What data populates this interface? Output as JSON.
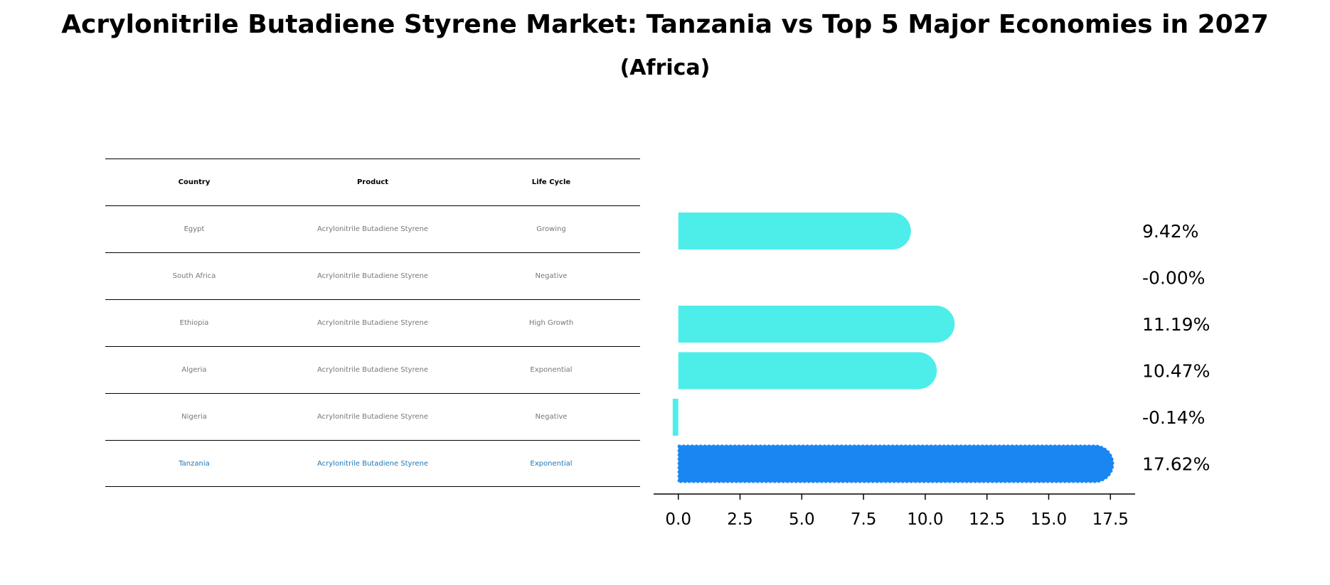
{
  "title": "Acrylonitrile Butadiene Styrene Market: Tanzania vs Top 5 Major Economies in 2027",
  "subtitle": "(Africa)",
  "table": {
    "headers": [
      "Country",
      "Product",
      "Life Cycle"
    ],
    "rows": [
      [
        "Egypt",
        "Acrylonitrile Butadiene Styrene",
        "Growing"
      ],
      [
        "South Africa",
        "Acrylonitrile Butadiene Styrene",
        "Negative"
      ],
      [
        "Ethiopia",
        "Acrylonitrile Butadiene Styrene",
        "High Growth"
      ],
      [
        "Algeria",
        "Acrylonitrile Butadiene Styrene",
        "Exponential"
      ],
      [
        "Nigeria",
        "Acrylonitrile Butadiene Styrene",
        "Negative"
      ],
      [
        "Tanzania",
        "Acrylonitrile Butadiene Styrene",
        "Exponential"
      ]
    ]
  },
  "chart_data": {
    "type": "bar",
    "orientation": "horizontal",
    "categories": [
      "Egypt",
      "South Africa",
      "Ethiopia",
      "Algeria",
      "Nigeria",
      "Tanzania"
    ],
    "values": [
      9.42,
      -0.0,
      11.19,
      10.47,
      -0.14,
      17.62
    ],
    "value_labels": [
      "9.42%",
      "-0.00%",
      "11.19%",
      "10.47%",
      "-0.14%",
      "17.62%"
    ],
    "highlight": "Tanzania",
    "xlim": [
      -1.0,
      18.5
    ],
    "xticks": [
      0.0,
      2.5,
      5.0,
      7.5,
      10.0,
      12.5,
      15.0,
      17.5
    ],
    "xtick_labels": [
      "0.0",
      "2.5",
      "5.0",
      "7.5",
      "10.0",
      "12.5",
      "15.0",
      "17.5"
    ],
    "colors": {
      "bar": "#4DEEEA",
      "highlight": "#1A86F2"
    },
    "grid": false
  }
}
